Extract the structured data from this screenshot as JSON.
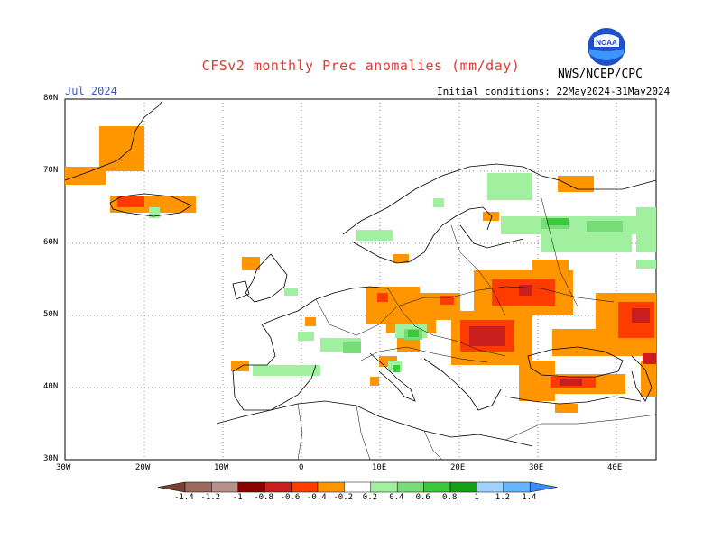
{
  "title": "CFSv2 monthly Prec anomalies (mm/day)",
  "month": "Jul 2024",
  "initial_conditions": "Initial conditions: 22May2024-31May2024",
  "agency": "NWS/NCEP/CPC",
  "logo_text": "NOAA",
  "lat_labels": [
    "80N",
    "70N",
    "60N",
    "50N",
    "40N",
    "30N"
  ],
  "lon_labels": [
    "30W",
    "20W",
    "10W",
    "0",
    "10E",
    "20E",
    "30E",
    "40E"
  ],
  "colorbar": {
    "labels": [
      "-1.4",
      "-1.2",
      "-1",
      "-0.8",
      "-0.6",
      "-0.4",
      "-0.2",
      "0.2",
      "0.4",
      "0.6",
      "0.8",
      "1",
      "1.2",
      "1.4"
    ],
    "colors": [
      "#7a4030",
      "#9b6a5a",
      "#b8908a",
      "#8b0000",
      "#c81e1e",
      "#ff3c00",
      "#ff9600",
      "#ffffff",
      "#a0f0a0",
      "#78dc78",
      "#3cc83c",
      "#14a014",
      "#a0d2ff",
      "#64b4ff",
      "#3c8cff"
    ]
  }
}
